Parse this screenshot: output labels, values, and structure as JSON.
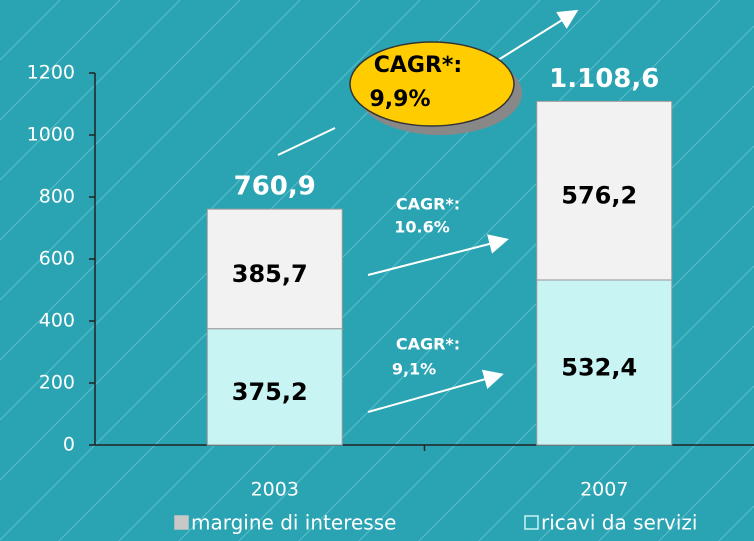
{
  "chart_data": {
    "type": "stacked_bar",
    "categories": [
      "2003",
      "2007"
    ],
    "series": [
      {
        "name": "ricavi da servizi",
        "color": "#c8f4f4",
        "values": [
          375.2,
          532.4
        ],
        "value_labels": [
          "375,2",
          "532,4"
        ]
      },
      {
        "name": "margine di interesse",
        "color": "#f2f2f2",
        "values": [
          385.7,
          576.2
        ],
        "value_labels": [
          "385,7",
          "576,2"
        ]
      }
    ],
    "legend_order": [
      1,
      0
    ],
    "totals": [
      760.9,
      1108.6
    ],
    "total_labels": [
      "760,9",
      "1.108,6"
    ],
    "ylim": [
      0,
      1200
    ],
    "yticks": [
      0,
      200,
      400,
      600,
      800,
      1000,
      1200
    ],
    "grid": false,
    "annotations": {
      "total_cagr": [
        "CAGR*:",
        "9,9%"
      ],
      "top_cagr": [
        "CAGR*:",
        "10.6%"
      ],
      "bottom_cagr": [
        "CAGR*:",
        "9,1%"
      ]
    }
  }
}
